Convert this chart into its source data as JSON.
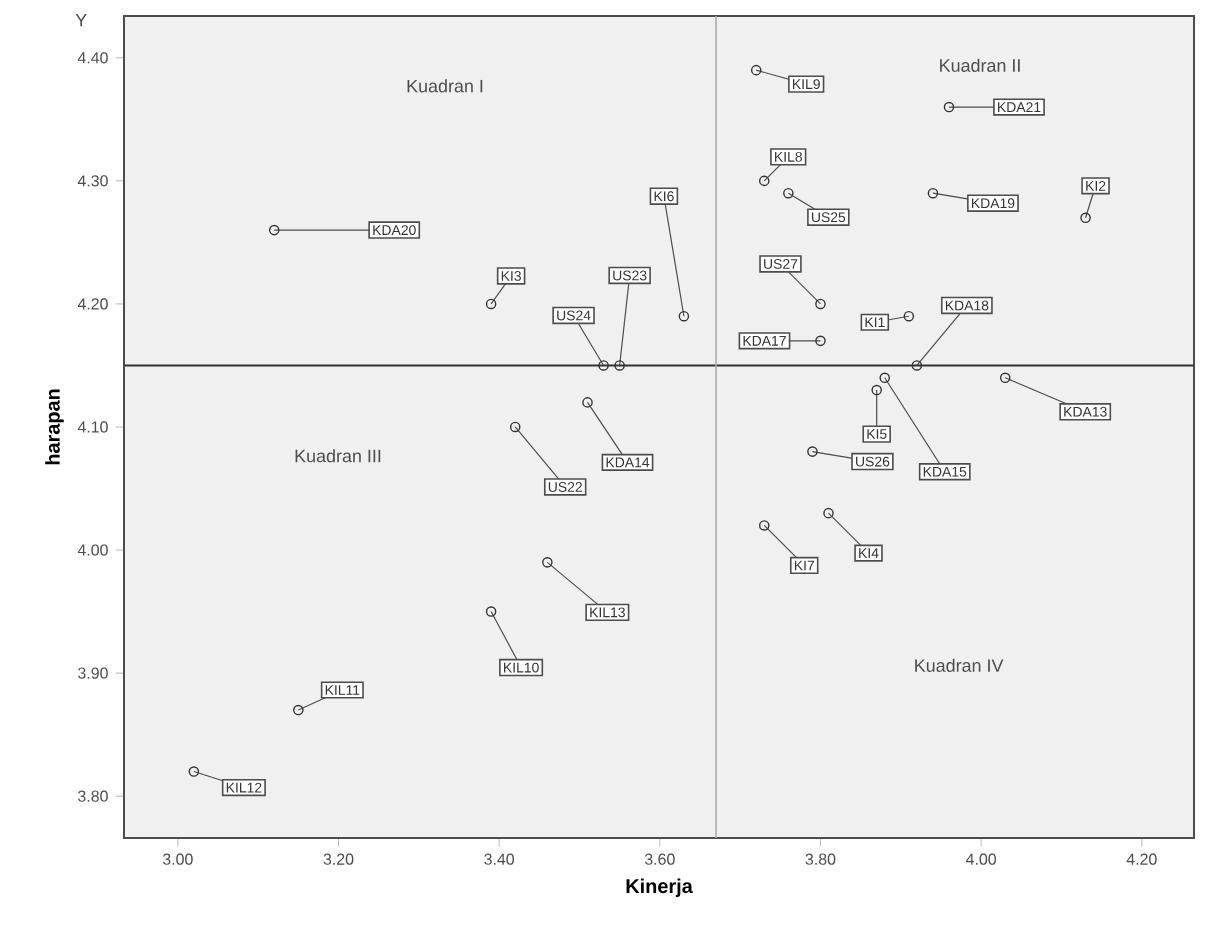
{
  "chart_data": {
    "type": "scatter",
    "xlabel": "Kinerja",
    "ylabel": "harapan",
    "x": [
      3.12,
      3.39,
      3.53,
      3.55,
      3.63,
      3.72,
      3.96,
      3.73,
      3.76,
      3.94,
      4.13,
      3.8,
      3.8,
      3.91,
      3.92,
      3.87,
      3.88,
      4.03,
      3.79,
      3.73,
      3.81,
      3.51,
      3.42,
      3.46,
      3.39,
      3.15,
      3.02
    ],
    "values": [
      4.26,
      4.2,
      4.15,
      4.15,
      4.19,
      4.39,
      4.36,
      4.3,
      4.29,
      4.29,
      4.27,
      4.2,
      4.17,
      4.19,
      4.15,
      4.13,
      4.14,
      4.14,
      4.08,
      4.02,
      4.03,
      4.12,
      4.1,
      3.99,
      3.95,
      3.87,
      3.82
    ],
    "color": "#333333",
    "marker": "circle",
    "xlim": [
      2.933,
      4.265
    ],
    "ylim": [
      3.766,
      4.434
    ],
    "xticks": [
      {
        "value": 3.0,
        "label": "3.00"
      },
      {
        "value": 3.2,
        "label": "3.20"
      },
      {
        "value": 3.4,
        "label": "3.40"
      },
      {
        "value": 3.6,
        "label": "3.60"
      },
      {
        "value": 3.8,
        "label": "3.80"
      },
      {
        "value": 4.0,
        "label": "4.00"
      },
      {
        "value": 4.2,
        "label": "4.20"
      }
    ],
    "yticks": [
      {
        "value": 3.8,
        "label": "3.80"
      },
      {
        "value": 3.9,
        "label": "3.90"
      },
      {
        "value": 4.0,
        "label": "4.00"
      },
      {
        "value": 4.1,
        "label": "4.10"
      },
      {
        "value": 4.2,
        "label": "4.20"
      },
      {
        "value": 4.3,
        "label": "4.30"
      },
      {
        "value": 4.4,
        "label": "4.40"
      }
    ],
    "ref_lines": [
      {
        "axis": "y",
        "value": 4.15,
        "color": "#333333"
      },
      {
        "axis": "x",
        "value": 3.67,
        "color": "#aaaaaa"
      }
    ],
    "annotations": [
      {
        "text": "KDA20",
        "x": 3.12,
        "y": 4.26
      },
      {
        "text": "KI3",
        "x": 3.39,
        "y": 4.2
      },
      {
        "text": "US24",
        "x": 3.53,
        "y": 4.15
      },
      {
        "text": "US23",
        "x": 3.55,
        "y": 4.15
      },
      {
        "text": "KI6",
        "x": 3.63,
        "y": 4.19
      },
      {
        "text": "KIL9",
        "x": 3.72,
        "y": 4.39
      },
      {
        "text": "KDA21",
        "x": 3.96,
        "y": 4.36
      },
      {
        "text": "KIL8",
        "x": 3.73,
        "y": 4.3
      },
      {
        "text": "US25",
        "x": 3.76,
        "y": 4.29
      },
      {
        "text": "KDA19",
        "x": 3.94,
        "y": 4.29
      },
      {
        "text": "KI2",
        "x": 4.13,
        "y": 4.27
      },
      {
        "text": "US27",
        "x": 3.8,
        "y": 4.2
      },
      {
        "text": "KDA17",
        "x": 3.8,
        "y": 4.17
      },
      {
        "text": "KI1",
        "x": 3.91,
        "y": 4.19
      },
      {
        "text": "KDA18",
        "x": 3.92,
        "y": 4.15
      },
      {
        "text": "KI5",
        "x": 3.87,
        "y": 4.13
      },
      {
        "text": "KDA15",
        "x": 3.88,
        "y": 4.14
      },
      {
        "text": "KDA13",
        "x": 4.03,
        "y": 4.14
      },
      {
        "text": "US26",
        "x": 3.79,
        "y": 4.08
      },
      {
        "text": "KI7",
        "x": 3.73,
        "y": 4.02
      },
      {
        "text": "KI4",
        "x": 3.81,
        "y": 4.03
      },
      {
        "text": "KDA14",
        "x": 3.51,
        "y": 4.12
      },
      {
        "text": "US22",
        "x": 3.42,
        "y": 4.1
      },
      {
        "text": "KIL13",
        "x": 3.46,
        "y": 3.99
      },
      {
        "text": "KIL10",
        "x": 3.39,
        "y": 3.95
      },
      {
        "text": "KIL11",
        "x": 3.15,
        "y": 3.87
      },
      {
        "text": "KIL12",
        "x": 3.02,
        "y": 3.82
      },
      "Kuadran I",
      "Kuadran II",
      "Kuadran III",
      "Kuadran IV",
      "Y"
    ]
  }
}
